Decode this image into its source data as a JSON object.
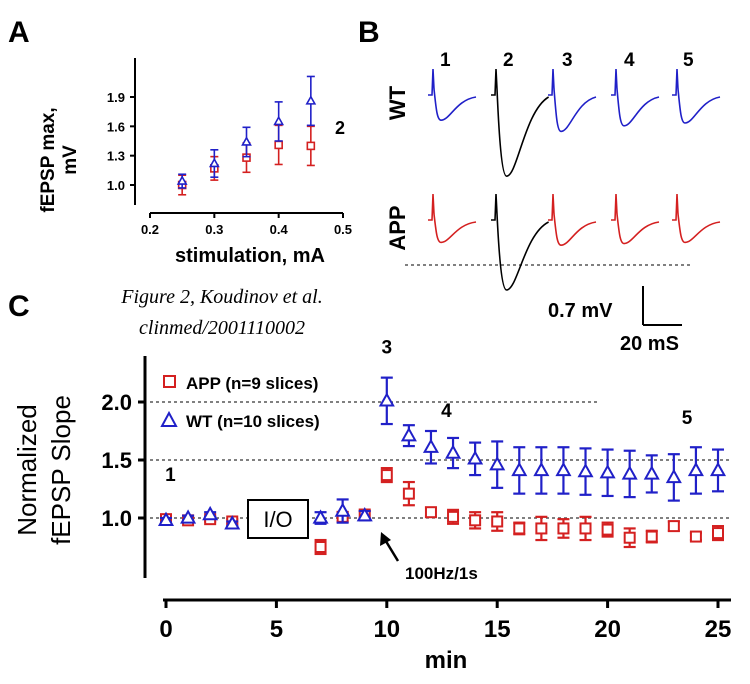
{
  "panel_labels": {
    "a": "A",
    "b": "B",
    "c": "C"
  },
  "caption": {
    "line1": "Figure 2, Koudinov et al.",
    "line2": "clinmed/2001110002"
  },
  "colors": {
    "app": "#d42020",
    "wt": "#2020c8",
    "black": "#000000"
  },
  "chart_data": [
    {
      "id": "panel-a",
      "type": "scatter",
      "title": "",
      "xlabel": "stimulation, mA",
      "ylabel_line1": "fEPSP max,",
      "ylabel_line2": "mV",
      "xlim": [
        0.2,
        0.5
      ],
      "ylim": [
        0.85,
        2.2
      ],
      "xticks": [
        0.2,
        0.3,
        0.4,
        0.5
      ],
      "xtick_labels": [
        "0.2",
        "0.3",
        "0.4",
        "0.5"
      ],
      "yticks": [
        1.0,
        1.3,
        1.6,
        1.9
      ],
      "ytick_labels": [
        "1.0",
        "1.3",
        "1.6",
        "1.9"
      ],
      "annotation": "2",
      "series": [
        {
          "name": "APP",
          "color": "#d42020",
          "marker": "square",
          "x": [
            0.25,
            0.3,
            0.35,
            0.4,
            0.45
          ],
          "y": [
            1.0,
            1.17,
            1.28,
            1.41,
            1.4
          ],
          "err": [
            0.1,
            0.12,
            0.15,
            0.2,
            0.2
          ]
        },
        {
          "name": "WT",
          "color": "#2020c8",
          "marker": "triangle",
          "x": [
            0.25,
            0.3,
            0.35,
            0.4,
            0.45
          ],
          "y": [
            1.04,
            1.22,
            1.44,
            1.65,
            1.86
          ],
          "err": [
            0.07,
            0.14,
            0.15,
            0.2,
            0.25
          ]
        }
      ]
    },
    {
      "id": "panel-b",
      "type": "line",
      "title": "",
      "row_labels": [
        "WT",
        "APP"
      ],
      "trace_labels": [
        "1",
        "2",
        "3",
        "4",
        "5"
      ],
      "scale_bar": {
        "voltage": "0.7 mV",
        "time": "20 mS"
      },
      "trace_depth_wt_mV": [
        0.45,
        1.45,
        0.65,
        0.55,
        0.5
      ],
      "trace_depth_app_mV": [
        0.4,
        1.25,
        0.45,
        0.42,
        0.4
      ],
      "trace_colors_wt": [
        "#2020c8",
        "#000000",
        "#2020c8",
        "#2020c8",
        "#2020c8"
      ],
      "trace_colors_app": [
        "#d42020",
        "#000000",
        "#d42020",
        "#d42020",
        "#d42020"
      ]
    },
    {
      "id": "panel-c",
      "type": "scatter",
      "title": "",
      "xlabel": "min",
      "ylabel_line1": "Normalized",
      "ylabel_line2": "fEPSP Slope",
      "xlim": [
        0,
        25
      ],
      "ylim": [
        0.55,
        2.4
      ],
      "xticks": [
        0,
        5,
        10,
        15,
        20,
        25
      ],
      "xtick_labels": [
        "0",
        "5",
        "10",
        "15",
        "20",
        "25"
      ],
      "yticks": [
        1.0,
        1.5,
        2.0
      ],
      "ytick_labels": [
        "1.0",
        "1.5",
        "2.0"
      ],
      "reference_lines": [
        1.0,
        1.5,
        2.0
      ],
      "legend": [
        "APP (n=9 slices)",
        "WT (n=10 slices)"
      ],
      "io_box_label": "I/O",
      "stim_annotation": "100Hz/1s",
      "stim_time_min": 9.5,
      "phase_labels": [
        {
          "text": "1",
          "x": 0.2,
          "y": 1.32
        },
        {
          "text": "3",
          "x": 10.0,
          "y": 2.42
        },
        {
          "text": "4",
          "x": 12.7,
          "y": 1.87
        },
        {
          "text": "5",
          "x": 23.6,
          "y": 1.81
        }
      ],
      "series": [
        {
          "name": "APP",
          "color": "#d42020",
          "marker": "square",
          "x": [
            0,
            1,
            2,
            3,
            7,
            8,
            9,
            10,
            11,
            12,
            13,
            14,
            15,
            16,
            17,
            18,
            19,
            20,
            21,
            22,
            23,
            24,
            25
          ],
          "y": [
            0.99,
            0.98,
            0.99,
            0.97,
            0.75,
            1.01,
            1.03,
            1.37,
            1.21,
            1.05,
            1.01,
            0.98,
            0.97,
            0.91,
            0.91,
            0.91,
            0.91,
            0.9,
            0.83,
            0.84,
            0.93,
            0.84,
            0.87
          ],
          "err": [
            0.02,
            0.02,
            0.02,
            0.02,
            0.06,
            0.04,
            0.03,
            0.06,
            0.1,
            0.04,
            0.06,
            0.07,
            0.08,
            0.05,
            0.1,
            0.08,
            0.1,
            0.06,
            0.08,
            0.05,
            0.04,
            0.03,
            0.06
          ]
        },
        {
          "name": "WT",
          "color": "#2020c8",
          "marker": "triangle",
          "x": [
            0,
            1,
            2,
            3,
            7,
            8,
            9,
            10,
            11,
            12,
            13,
            14,
            15,
            16,
            17,
            18,
            19,
            20,
            21,
            22,
            23,
            24,
            25
          ],
          "y": [
            0.98,
            1.0,
            1.03,
            0.95,
            1.0,
            1.06,
            1.02,
            2.01,
            1.71,
            1.61,
            1.56,
            1.51,
            1.46,
            1.41,
            1.41,
            1.41,
            1.4,
            1.39,
            1.38,
            1.38,
            1.35,
            1.41,
            1.41
          ],
          "err": [
            0.02,
            0.02,
            0.02,
            0.02,
            0.05,
            0.1,
            0.04,
            0.2,
            0.09,
            0.14,
            0.13,
            0.14,
            0.2,
            0.2,
            0.2,
            0.2,
            0.2,
            0.2,
            0.2,
            0.16,
            0.2,
            0.2,
            0.18
          ]
        }
      ]
    }
  ]
}
